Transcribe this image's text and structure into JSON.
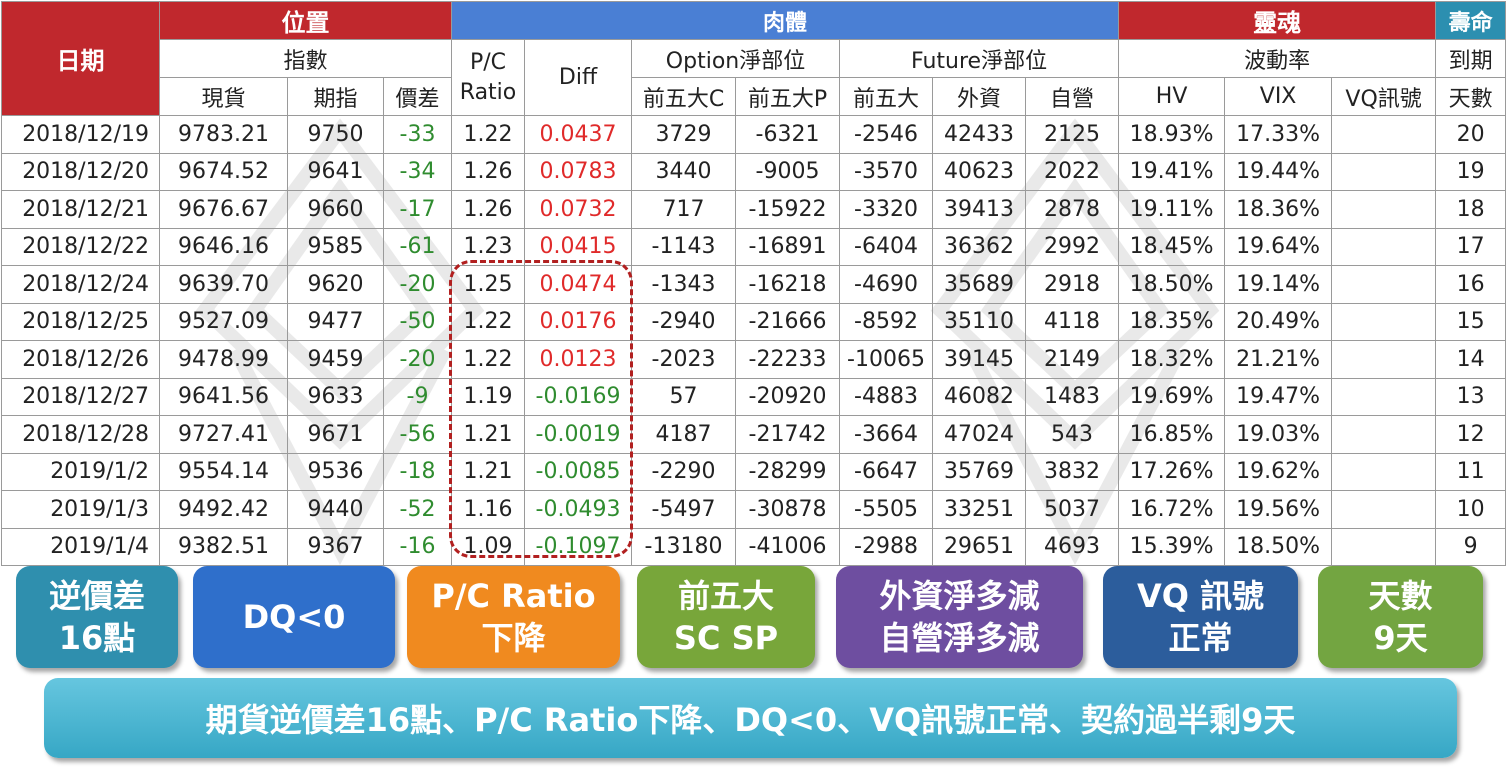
{
  "header": {
    "date_label": "日期",
    "groups": [
      "位置",
      "肉體",
      "靈魂",
      "壽命"
    ],
    "sub": {
      "index": "指數",
      "pc_ratio": "P/C\nRatio",
      "diff": "Diff",
      "option": "Option淨部位",
      "future": "Future淨部位",
      "vol": "波動率",
      "expiry": "到期"
    },
    "cols": {
      "spot": "現貨",
      "fut": "期指",
      "basis": "價差",
      "top5c": "前五大C",
      "top5p": "前五大P",
      "top5": "前五大",
      "foreign": "外資",
      "prop": "自營",
      "hv": "HV",
      "vix": "VIX",
      "vq": "VQ訊號",
      "days": "天數"
    }
  },
  "rows": [
    {
      "date": "2018/12/19",
      "spot": "9783.21",
      "fut": "9750",
      "basis": "-33",
      "pc": "1.22",
      "diff": "0.0437",
      "oc": "3729",
      "op": "-6321",
      "t5": "-2546",
      "fr": "42433",
      "pr": "2125",
      "hv": "18.93%",
      "vix": "17.33%",
      "vq": "",
      "days": "20"
    },
    {
      "date": "2018/12/20",
      "spot": "9674.52",
      "fut": "9641",
      "basis": "-34",
      "pc": "1.26",
      "diff": "0.0783",
      "oc": "3440",
      "op": "-9005",
      "t5": "-3570",
      "fr": "40623",
      "pr": "2022",
      "hv": "19.41%",
      "vix": "19.44%",
      "vq": "",
      "days": "19"
    },
    {
      "date": "2018/12/21",
      "spot": "9676.67",
      "fut": "9660",
      "basis": "-17",
      "pc": "1.26",
      "diff": "0.0732",
      "oc": "717",
      "op": "-15922",
      "t5": "-3320",
      "fr": "39413",
      "pr": "2878",
      "hv": "19.11%",
      "vix": "18.36%",
      "vq": "",
      "days": "18"
    },
    {
      "date": "2018/12/22",
      "spot": "9646.16",
      "fut": "9585",
      "basis": "-61",
      "pc": "1.23",
      "diff": "0.0415",
      "oc": "-1143",
      "op": "-16891",
      "t5": "-6404",
      "fr": "36362",
      "pr": "2992",
      "hv": "18.45%",
      "vix": "19.64%",
      "vq": "",
      "days": "17"
    },
    {
      "date": "2018/12/24",
      "spot": "9639.70",
      "fut": "9620",
      "basis": "-20",
      "pc": "1.25",
      "diff": "0.0474",
      "oc": "-1343",
      "op": "-16218",
      "t5": "-4690",
      "fr": "35689",
      "pr": "2918",
      "hv": "18.50%",
      "vix": "19.14%",
      "vq": "",
      "days": "16"
    },
    {
      "date": "2018/12/25",
      "spot": "9527.09",
      "fut": "9477",
      "basis": "-50",
      "pc": "1.22",
      "diff": "0.0176",
      "oc": "-2940",
      "op": "-21666",
      "t5": "-8592",
      "fr": "35110",
      "pr": "4118",
      "hv": "18.35%",
      "vix": "20.49%",
      "vq": "",
      "days": "15"
    },
    {
      "date": "2018/12/26",
      "spot": "9478.99",
      "fut": "9459",
      "basis": "-20",
      "pc": "1.22",
      "diff": "0.0123",
      "oc": "-2023",
      "op": "-22233",
      "t5": "-10065",
      "fr": "39145",
      "pr": "2149",
      "hv": "18.32%",
      "vix": "21.21%",
      "vq": "",
      "days": "14"
    },
    {
      "date": "2018/12/27",
      "spot": "9641.56",
      "fut": "9633",
      "basis": "-9",
      "pc": "1.19",
      "diff": "-0.0169",
      "oc": "57",
      "op": "-20920",
      "t5": "-4883",
      "fr": "46082",
      "pr": "1483",
      "hv": "19.69%",
      "vix": "19.47%",
      "vq": "",
      "days": "13"
    },
    {
      "date": "2018/12/28",
      "spot": "9727.41",
      "fut": "9671",
      "basis": "-56",
      "pc": "1.21",
      "diff": "-0.0019",
      "oc": "4187",
      "op": "-21742",
      "t5": "-3664",
      "fr": "47024",
      "pr": "543",
      "hv": "16.85%",
      "vix": "19.03%",
      "vq": "",
      "days": "12"
    },
    {
      "date": "2019/1/2",
      "spot": "9554.14",
      "fut": "9536",
      "basis": "-18",
      "pc": "1.21",
      "diff": "-0.0085",
      "oc": "-2290",
      "op": "-28299",
      "t5": "-6647",
      "fr": "35769",
      "pr": "3832",
      "hv": "17.26%",
      "vix": "19.62%",
      "vq": "",
      "days": "11"
    },
    {
      "date": "2019/1/3",
      "spot": "9492.42",
      "fut": "9440",
      "basis": "-52",
      "pc": "1.16",
      "diff": "-0.0493",
      "oc": "-5497",
      "op": "-30878",
      "t5": "-5505",
      "fr": "33251",
      "pr": "5037",
      "hv": "16.72%",
      "vix": "19.56%",
      "vq": "",
      "days": "10"
    },
    {
      "date": "2019/1/4",
      "spot": "9382.51",
      "fut": "9367",
      "basis": "-16",
      "pc": "1.09",
      "diff": "-0.1097",
      "oc": "-13180",
      "op": "-41006",
      "t5": "-2988",
      "fr": "29651",
      "pr": "4693",
      "hv": "15.39%",
      "vix": "18.50%",
      "vq": "",
      "days": "9"
    }
  ],
  "buttons": [
    {
      "l1": "逆價差",
      "l2": "16點",
      "color": "#2f8fae"
    },
    {
      "l1": "DQ<0",
      "l2": "",
      "color": "#2f6fcb"
    },
    {
      "l1": "P/C Ratio",
      "l2": "下降",
      "color": "#f08a1f"
    },
    {
      "l1": "前五大",
      "l2": "SC  SP",
      "color": "#78a63a"
    },
    {
      "l1": "外資淨多減",
      "l2": "自營淨多減",
      "color": "#6e4ea0"
    },
    {
      "l1": "VQ 訊號",
      "l2": "正常",
      "color": "#2c5d9c"
    },
    {
      "l1": "天數",
      "l2": "9天",
      "color": "#73a541"
    }
  ],
  "summary": "期貨逆價差16點、P/C Ratio下降、DQ<0、VQ訊號正常、契約過半剩9天",
  "colors": {
    "header_red": "#c0282d",
    "header_blue": "#4a7fd4",
    "header_teal": "#2c8fb0",
    "pos": "#e02a2a",
    "neg": "#2f8c2f"
  }
}
